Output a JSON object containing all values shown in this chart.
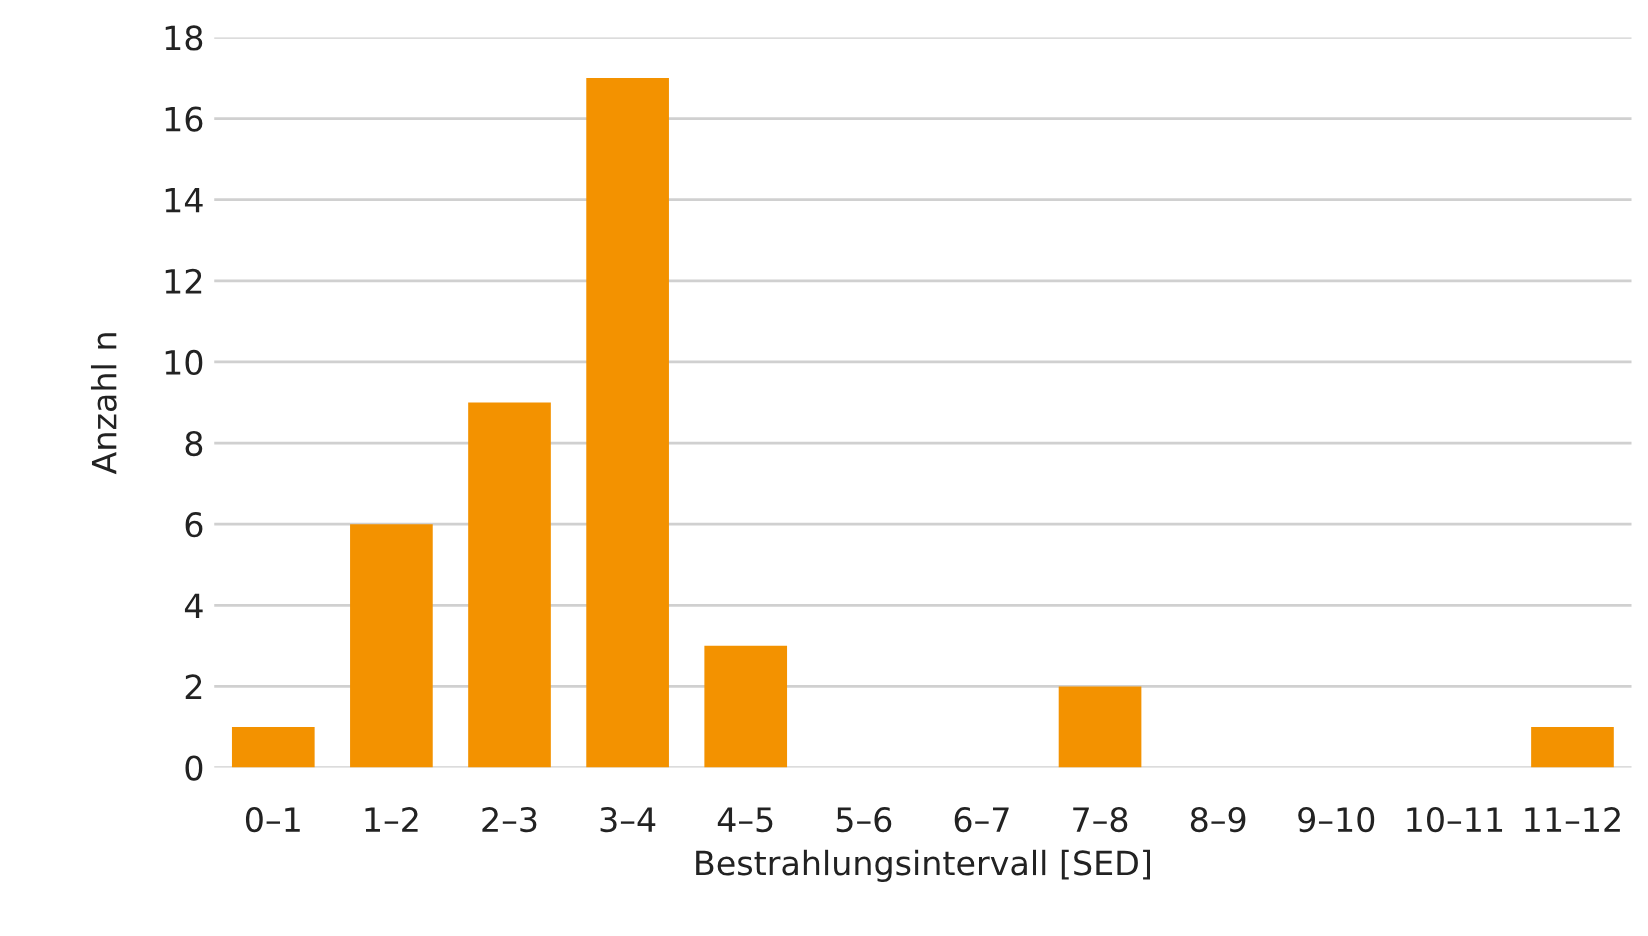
{
  "chart_data": {
    "type": "bar",
    "xlabel": "Bestrahlungsintervall [SED]",
    "ylabel": "Anzahl n",
    "categories": [
      "0–1",
      "1–2",
      "2–3",
      "3–4",
      "4–5",
      "5–6",
      "6–7",
      "7–8",
      "8–9",
      "9–10",
      "10–11",
      "11–12"
    ],
    "values": [
      1,
      6,
      9,
      17,
      3,
      0,
      0,
      2,
      0,
      0,
      0,
      1
    ],
    "color": "#f39200",
    "ylim": [
      0,
      18
    ],
    "yticks": [
      0,
      2,
      4,
      6,
      8,
      10,
      12,
      14,
      16,
      18
    ],
    "grid": "y",
    "legend": false
  }
}
